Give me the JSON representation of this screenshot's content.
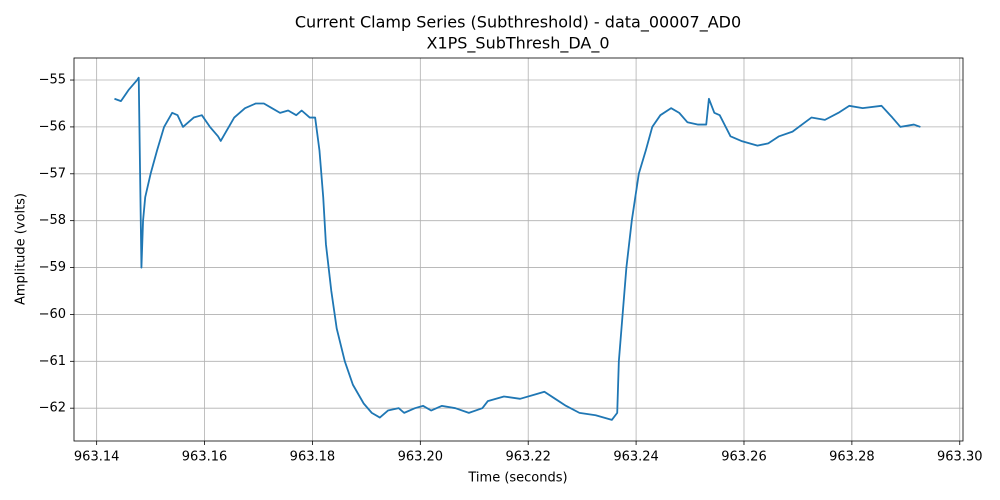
{
  "chart_data": {
    "type": "line",
    "title": "Current Clamp Series (Subthreshold) - data_00007_AD0",
    "subtitle": "X1PS_SubThresh_DA_0",
    "x_label": "Time (seconds)",
    "y_label": "Amplitude (volts)",
    "color": "#1f77b4",
    "grid": true,
    "xlim": [
      963.1358,
      963.3006
    ],
    "ylim": [
      -62.7,
      -54.53
    ],
    "xticks": [
      963.14,
      963.16,
      963.18,
      {
        "value": 963.2,
        "label": "963.20"
      },
      963.22,
      963.24,
      963.26,
      963.28,
      {
        "value": 963.3,
        "label": "963.30"
      }
    ],
    "yticks": [
      {
        "value": -55,
        "label": "−55"
      },
      {
        "value": -56,
        "label": "−56"
      },
      {
        "value": -57,
        "label": "−57"
      },
      {
        "value": -58,
        "label": "−58"
      },
      {
        "value": -59,
        "label": "−59"
      },
      {
        "value": -60,
        "label": "−60"
      },
      {
        "value": -61,
        "label": "−61"
      },
      {
        "value": -62,
        "label": "−62"
      }
    ],
    "x": [
      963.1433,
      963.1445,
      963.146,
      963.1475,
      963.1478,
      963.1483,
      963.1486,
      963.149,
      963.15,
      963.1512,
      963.1525,
      963.154,
      963.155,
      963.156,
      963.158,
      963.1595,
      963.161,
      963.1625,
      963.163,
      963.164,
      963.1655,
      963.1675,
      963.1695,
      963.171,
      963.1725,
      963.174,
      963.1755,
      963.177,
      963.178,
      963.1795,
      963.1805,
      963.1813,
      963.182,
      963.1825,
      963.1835,
      963.1845,
      963.186,
      963.1875,
      963.1895,
      963.191,
      963.1925,
      963.194,
      963.196,
      963.197,
      963.199,
      963.2005,
      963.202,
      963.204,
      963.2065,
      963.209,
      963.2115,
      963.2125,
      963.2155,
      963.2185,
      963.2215,
      963.223,
      963.225,
      963.227,
      963.2295,
      963.2325,
      963.2355,
      963.2365,
      963.2368,
      963.2375,
      963.2382,
      963.2392,
      963.2405,
      963.2418,
      963.243,
      963.2445,
      963.2465,
      963.248,
      963.2495,
      963.2515,
      963.253,
      963.2535,
      963.2545,
      963.2555,
      963.2575,
      963.2595,
      963.2625,
      963.2645,
      963.2665,
      963.269,
      963.2725,
      963.275,
      963.2775,
      963.2795,
      963.282,
      963.2855,
      963.2875,
      963.289,
      963.2915,
      963.2927
    ],
    "values": [
      -55.4,
      -55.45,
      -55.2,
      -55.0,
      -54.95,
      -59.0,
      -58.0,
      -57.5,
      -57.0,
      -56.5,
      -56.0,
      -55.7,
      -55.75,
      -56.0,
      -55.8,
      -55.75,
      -56.0,
      -56.2,
      -56.3,
      -56.1,
      -55.8,
      -55.6,
      -55.5,
      -55.5,
      -55.6,
      -55.7,
      -55.65,
      -55.75,
      -55.65,
      -55.8,
      -55.8,
      -56.5,
      -57.5,
      -58.5,
      -59.5,
      -60.3,
      -61.0,
      -61.5,
      -61.9,
      -62.1,
      -62.2,
      -62.05,
      -62.0,
      -62.1,
      -62.0,
      -61.95,
      -62.05,
      -61.95,
      -62.0,
      -62.1,
      -62.0,
      -61.85,
      -61.75,
      -61.8,
      -61.7,
      -61.65,
      -61.8,
      -61.95,
      -62.1,
      -62.15,
      -62.25,
      -62.1,
      -61.0,
      -60.0,
      -59.0,
      -58.0,
      -57.0,
      -56.5,
      -56.0,
      -55.75,
      -55.6,
      -55.7,
      -55.9,
      -55.95,
      -55.95,
      -55.4,
      -55.7,
      -55.75,
      -56.2,
      -56.3,
      -56.4,
      -56.35,
      -56.2,
      -56.1,
      -55.8,
      -55.85,
      -55.7,
      -55.55,
      -55.6,
      -55.55,
      -55.8,
      -56.0,
      -55.95,
      -56.0
    ]
  }
}
